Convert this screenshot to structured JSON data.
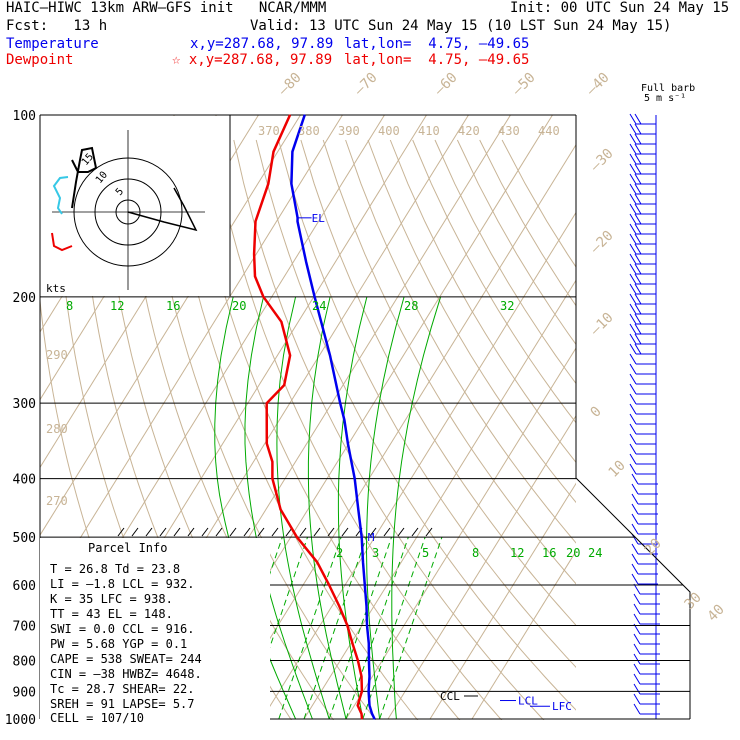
{
  "header": {
    "title_left": "HAIC–HIWC 13km ARW–GFS init   NCAR/MMM",
    "init": "Init: 00 UTC Sun 24 May 15",
    "fcst": "Fcst:   13 h",
    "valid": "Valid: 13 UTC Sun 24 May 15 (10 LST Sun 24 May 15)",
    "temperature_label": "Temperature",
    "dewpoint_label": "Dewpoint",
    "xy_temp": "x,y=287.68, 97.89",
    "xy_dew": "☆ x,y=287.68, 97.89",
    "latlon_temp": "lat,lon=  4.75, –49.65",
    "latlon_dew": "lat,lon=  4.75, –49.65",
    "full_barb": "Full barb",
    "full_barb_unit": "5 m s⁻¹",
    "colors": {
      "temperature": "#0000ee",
      "dewpoint": "#ee0000",
      "mixing_ratio": "#00aa00",
      "isotherm": "#c8b496",
      "black": "#000000"
    }
  },
  "parcel": {
    "title": "Parcel Info",
    "rows": [
      "T   =   26.8 Td =  23.8",
      "LI  =   –1.8 LCL =  932.",
      "K   =     35 LFC =  938.",
      "TT  =     43 EL  =  148.",
      "SWI =    0.0 CCL =  916.",
      "PW  =   5.68 YGP =   0.1",
      "CAPE =   538 SWEAT=  244",
      "CIN  =   –38 HWBZ= 4648.",
      "Tc  =   28.7 SHEAR=  22.",
      "SREH =    91 LAPSE=  5.7",
      "CELL = 107/10"
    ]
  },
  "hodograph": {
    "units_label": "kts",
    "ring_labels": [
      "5",
      "10",
      "15"
    ]
  },
  "chart_data": {
    "type": "line",
    "title": "",
    "pressure_axis": {
      "levels": [
        100,
        200,
        300,
        400,
        500,
        600,
        700,
        800,
        900,
        1000
      ],
      "labels": [
        "100",
        "200",
        "300",
        "400",
        "500",
        "600",
        "700",
        "800",
        "900",
        "1000"
      ]
    },
    "temperature_labels": [
      "–80",
      "–70",
      "–60",
      "–50",
      "–40",
      "–30",
      "–20",
      "–10",
      "0",
      "10",
      "20",
      "30",
      "40"
    ],
    "theta_labels": [
      "370",
      "380",
      "390",
      "400",
      "410",
      "420",
      "430",
      "440"
    ],
    "theta_side_labels": [
      "290",
      "280",
      "270"
    ],
    "mixing_ratio_labels_upper": [
      "8",
      "12",
      "16",
      "20",
      "24",
      "28",
      "32"
    ],
    "mixing_ratio_labels_lower": [
      "2",
      "3",
      "5",
      "8",
      "12",
      "16",
      "20",
      "24"
    ],
    "marker_labels": {
      "el": "EL",
      "ccl": "CCL",
      "lcl": "LCL",
      "lfc": "LFC",
      "m": "M"
    },
    "series": [
      {
        "name": "Temperature",
        "color": "#0000ee",
        "points": [
          [
            1000,
            26.8
          ],
          [
            980,
            25.4
          ],
          [
            950,
            23.6
          ],
          [
            932,
            22.8
          ],
          [
            900,
            21.3
          ],
          [
            850,
            19.3
          ],
          [
            800,
            16.8
          ],
          [
            750,
            14.3
          ],
          [
            700,
            11.2
          ],
          [
            650,
            8.2
          ],
          [
            600,
            4.7
          ],
          [
            550,
            0.9
          ],
          [
            500,
            -3.1
          ],
          [
            450,
            -8.0
          ],
          [
            400,
            -13.4
          ],
          [
            350,
            -20.2
          ],
          [
            320,
            -24.5
          ],
          [
            300,
            -28.0
          ],
          [
            250,
            -37.5
          ],
          [
            200,
            -49.8
          ],
          [
            175,
            -57.0
          ],
          [
            150,
            -65.0
          ],
          [
            148,
            -65.5
          ],
          [
            130,
            -72.0
          ],
          [
            115,
            -76.5
          ],
          [
            100,
            -79.0
          ]
        ]
      },
      {
        "name": "Dewpoint",
        "color": "#ee0000",
        "points": [
          [
            1000,
            23.8
          ],
          [
            980,
            22.9
          ],
          [
            950,
            20.8
          ],
          [
            932,
            20.4
          ],
          [
            900,
            19.7
          ],
          [
            850,
            17.4
          ],
          [
            800,
            14.2
          ],
          [
            750,
            10.4
          ],
          [
            700,
            6.5
          ],
          [
            650,
            1.7
          ],
          [
            600,
            -3.8
          ],
          [
            550,
            -10.0
          ],
          [
            500,
            -18.5
          ],
          [
            450,
            -26.5
          ],
          [
            400,
            -33.0
          ],
          [
            375,
            -35.5
          ],
          [
            350,
            -39.5
          ],
          [
            300,
            -45.5
          ],
          [
            280,
            -44.0
          ],
          [
            250,
            -47.0
          ],
          [
            220,
            -54.0
          ],
          [
            200,
            -62.0
          ],
          [
            185,
            -67.0
          ],
          [
            170,
            -70.5
          ],
          [
            150,
            -75.0
          ],
          [
            130,
            -77.5
          ],
          [
            115,
            -81.0
          ],
          [
            100,
            -82.5
          ]
        ]
      }
    ],
    "grid": true
  }
}
